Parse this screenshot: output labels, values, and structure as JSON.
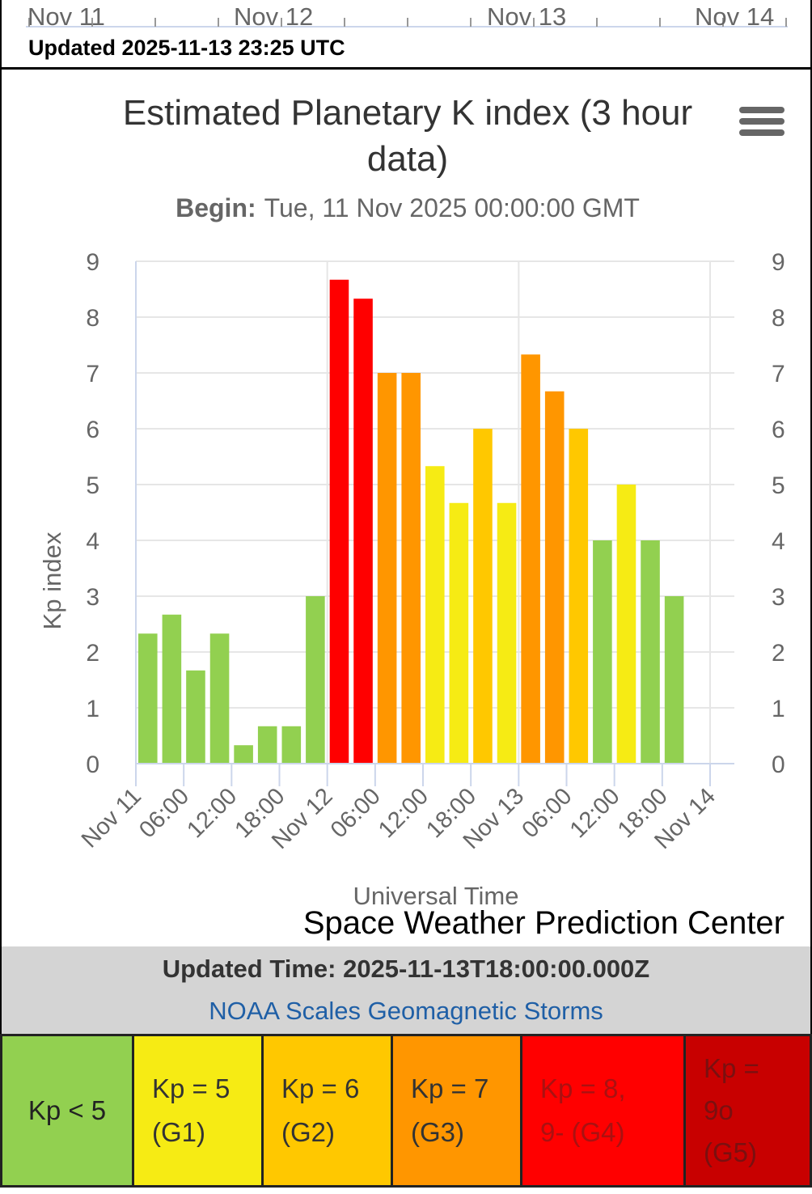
{
  "top_strip": {
    "axis_labels": [
      "Nov 11",
      "Nov 12",
      "Nov 13",
      "Nov 14"
    ],
    "updated": "Updated 2025-11-13 23:25 UTC"
  },
  "chart_data": {
    "type": "bar",
    "title_line1": "Estimated Planetary K index (3 hour",
    "title_line2": "data)",
    "subtitle_label": "Begin:",
    "subtitle_value": "Tue, 11 Nov 2025 00:00:00 GMT",
    "ylabel": "Kp index",
    "xlabel": "Universal Time",
    "ylim": [
      0,
      9
    ],
    "y_ticks": [
      0,
      1,
      2,
      3,
      4,
      5,
      6,
      7,
      8,
      9
    ],
    "x_tick_labels": [
      "Nov 11",
      "06:00",
      "12:00",
      "18:00",
      "Nov 12",
      "06:00",
      "12:00",
      "18:00",
      "Nov 13",
      "06:00",
      "12:00",
      "18:00",
      "Nov 14"
    ],
    "values": [
      2.33,
      2.67,
      1.67,
      2.33,
      0.33,
      0.67,
      0.67,
      3.0,
      8.67,
      8.33,
      7.0,
      7.0,
      5.33,
      4.67,
      6.0,
      4.67,
      7.33,
      6.67,
      6.0,
      4.0,
      5.0,
      4.0,
      3.0
    ],
    "colors": {
      "kp_below_5": "#92d050",
      "kp_5": "#f6eb14",
      "kp_6": "#ffc800",
      "kp_7": "#ff9600",
      "kp_8": "#ff0000",
      "kp_9": "#c80000"
    },
    "credits": "Space Weather Prediction Center"
  },
  "info": {
    "updated_time": "Updated Time: 2025-11-13T18:00:00.000Z",
    "link": "NOAA Scales Geomagnetic Storms"
  },
  "scale": [
    {
      "line1": "Kp < 5",
      "line2": "",
      "line3": "",
      "color": "#92d050"
    },
    {
      "line1": "Kp = 5",
      "line2": "(G1)",
      "line3": "",
      "color": "#f6eb14"
    },
    {
      "line1": "Kp = 6",
      "line2": "(G2)",
      "line3": "",
      "color": "#ffc800"
    },
    {
      "line1": "Kp = 7",
      "line2": "(G3)",
      "line3": "",
      "color": "#ff9600"
    },
    {
      "line1": "Kp = 8,",
      "line2": "9- (G4)",
      "line3": "",
      "color": "#ff0000"
    },
    {
      "line1": "Kp =",
      "line2": "9o",
      "line3": "(G5)",
      "color": "#c80000"
    }
  ]
}
